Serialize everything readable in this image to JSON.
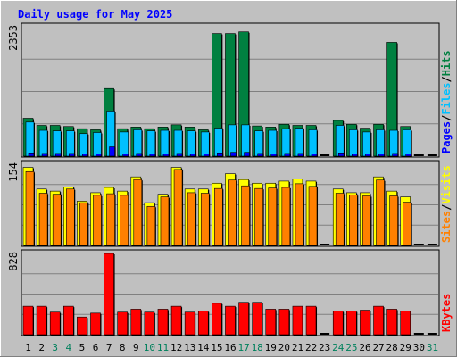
{
  "chart_data": {
    "type": "bar",
    "title": "Daily usage for May 2025",
    "categories": [
      "1",
      "2",
      "3",
      "4",
      "5",
      "6",
      "7",
      "8",
      "9",
      "10",
      "11",
      "12",
      "13",
      "14",
      "15",
      "16",
      "17",
      "18",
      "19",
      "20",
      "21",
      "22",
      "23",
      "24",
      "25",
      "26",
      "27",
      "28",
      "29",
      "30",
      "31"
    ],
    "weekend_days": [
      3,
      4,
      10,
      11,
      17,
      18,
      24,
      25,
      31
    ],
    "panels": [
      {
        "id": "hits",
        "ymax": 2353,
        "ymax_label": "2353",
        "right_label": [
          "Pages",
          "/",
          "Files",
          "/",
          "Hits"
        ],
        "series": [
          {
            "name": "Hits",
            "color": "#008040",
            "values": [
              690,
              560,
              560,
              540,
              500,
              480,
              1230,
              500,
              530,
              500,
              530,
              570,
              530,
              480,
              2230,
              2230,
              2260,
              550,
              530,
              580,
              560,
              560,
              0,
              650,
              580,
              510,
              580,
              2070,
              540,
              0,
              0
            ]
          },
          {
            "name": "Files",
            "color": "#00c0ff",
            "values": [
              620,
              470,
              460,
              460,
              410,
              430,
              820,
              440,
              480,
              460,
              470,
              470,
              460,
              440,
              510,
              570,
              570,
              460,
              470,
              500,
              510,
              480,
              0,
              560,
              480,
              440,
              480,
              470,
              480,
              0,
              0
            ]
          },
          {
            "name": "Pages",
            "color": "#0000ff",
            "values": [
              60,
              50,
              50,
              50,
              40,
              40,
              170,
              40,
              50,
              40,
              40,
              50,
              40,
              40,
              60,
              70,
              70,
              50,
              40,
              50,
              50,
              40,
              0,
              60,
              40,
              40,
              40,
              50,
              40,
              0,
              0
            ]
          }
        ]
      },
      {
        "id": "visits",
        "ymax": 154,
        "ymax_label": "154",
        "right_label": [
          "Sites",
          "/",
          "Visits"
        ],
        "series": [
          {
            "name": "Visits",
            "color": "#ffff00",
            "values": [
              148,
              107,
              103,
              111,
              84,
              100,
              110,
              103,
              130,
              81,
              97,
              148,
              107,
              107,
              118,
              136,
              125,
              118,
              118,
              122,
              126,
              122,
              0,
              107,
              100,
              100,
              130,
              103,
              92,
              0,
              0
            ]
          },
          {
            "name": "Sites",
            "color": "#ff8000",
            "values": [
              140,
              99,
              97,
              107,
              81,
              95,
              98,
              95,
              125,
              74,
              92,
              144,
              100,
              99,
              108,
              124,
              113,
              108,
              109,
              110,
              117,
              112,
              0,
              99,
              96,
              94,
              124,
              94,
              82,
              0,
              0
            ]
          }
        ]
      },
      {
        "id": "kbytes",
        "ymax": 828,
        "ymax_label": "828",
        "right_label": [
          "KBytes"
        ],
        "series": [
          {
            "name": "KBytes",
            "color": "#ff0000",
            "values": [
              290,
              290,
              230,
              290,
              180,
              220,
              828,
              230,
              260,
              230,
              260,
              290,
              230,
              240,
              320,
              290,
              330,
              330,
              260,
              260,
              290,
              290,
              0,
              240,
              240,
              250,
              290,
              260,
              240,
              0,
              0
            ]
          }
        ]
      }
    ],
    "day_axis": [
      {
        "label": "1",
        "index": 0,
        "weekend": false
      },
      {
        "label": "2",
        "index": 1,
        "weekend": false
      },
      {
        "label": "3",
        "index": 2,
        "weekend": true
      },
      {
        "label": "4",
        "index": 3,
        "weekend": true
      },
      {
        "label": "5",
        "index": 4,
        "weekend": false
      },
      {
        "label": "6",
        "index": 5,
        "weekend": false
      },
      {
        "label": "7",
        "index": 6,
        "weekend": false
      },
      {
        "label": "8",
        "index": 7,
        "weekend": false
      },
      {
        "label": "9",
        "index": 8,
        "weekend": false
      },
      {
        "label": "10",
        "index": 9,
        "weekend": true
      },
      {
        "label": "11",
        "index": 10,
        "weekend": true
      },
      {
        "label": "12",
        "index": 11,
        "weekend": false
      },
      {
        "label": "13",
        "index": 12,
        "weekend": false
      },
      {
        "label": "14",
        "index": 13,
        "weekend": false
      },
      {
        "label": "15",
        "index": 14,
        "weekend": false
      },
      {
        "label": "16",
        "index": 15,
        "weekend": false
      },
      {
        "label": "17",
        "index": 16,
        "weekend": true
      },
      {
        "label": "18",
        "index": 17,
        "weekend": true
      },
      {
        "label": "19",
        "index": 18,
        "weekend": false
      },
      {
        "label": "20",
        "index": 19,
        "weekend": false
      },
      {
        "label": "21",
        "index": 20,
        "weekend": false
      },
      {
        "label": "22",
        "index": 21,
        "weekend": false
      },
      {
        "label": "23",
        "index": 22,
        "weekend": false
      },
      {
        "label": "24",
        "index": 23,
        "weekend": true
      },
      {
        "label": "25",
        "index": 24,
        "weekend": true
      },
      {
        "label": "26",
        "index": 25,
        "weekend": false
      },
      {
        "label": "27",
        "index": 26,
        "weekend": false
      },
      {
        "label": "28",
        "index": 27,
        "weekend": false
      },
      {
        "label": "29",
        "index": 28,
        "weekend": false
      },
      {
        "label": "30",
        "index": 29,
        "weekend": false
      },
      {
        "label": "31",
        "index": 30,
        "weekend": true
      }
    ],
    "colors": {
      "background": "#c0c0c0",
      "title": "#0000ff",
      "weekday_label": "#000000",
      "weekend_label": "#00805c",
      "grid": "#808080",
      "pages": "#0000ff",
      "files": "#00c0ff",
      "hits": "#008040",
      "visits": "#ffff00",
      "sites": "#ff8000",
      "kbytes": "#ff0000"
    }
  }
}
